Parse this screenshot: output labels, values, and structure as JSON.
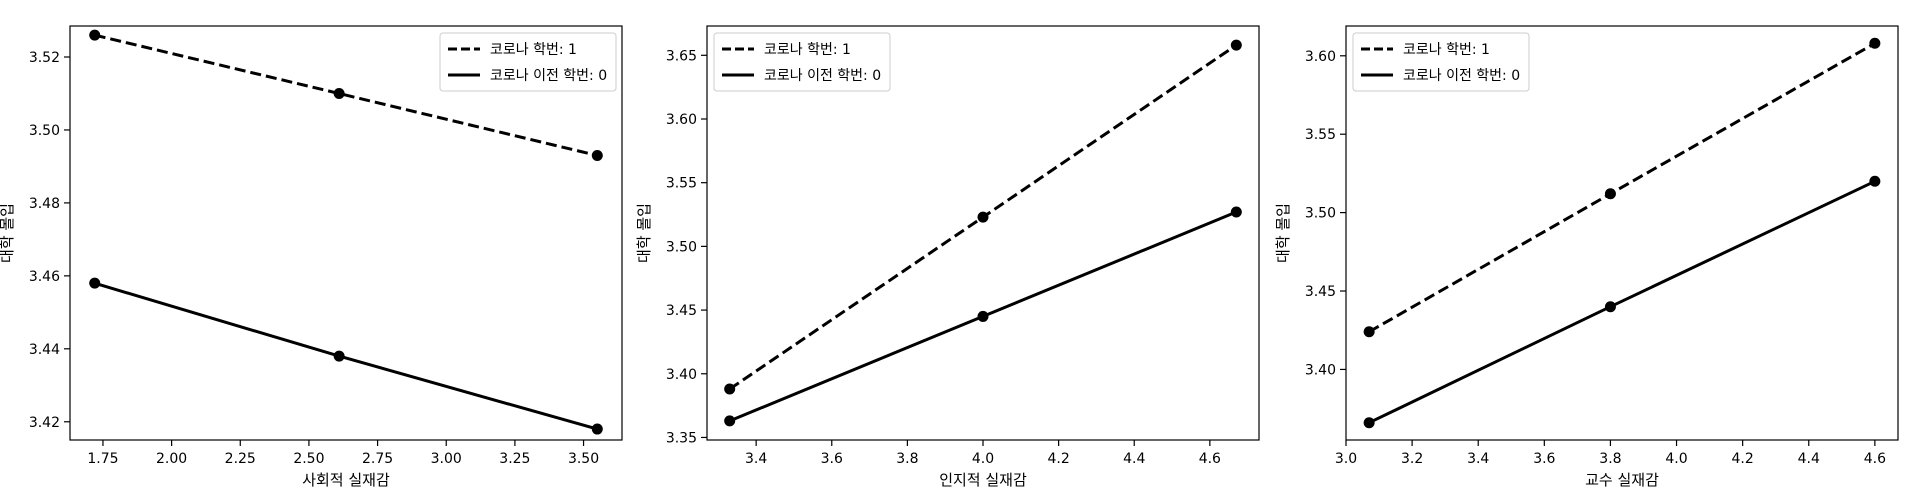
{
  "chart_data": [
    {
      "type": "line",
      "xlabel": "사회적 실재감",
      "ylabel": "대학 몰입",
      "xlim": [
        1.63,
        3.64
      ],
      "ylim": [
        3.415,
        3.5285
      ],
      "xticks": [
        1.75,
        2.0,
        2.25,
        2.5,
        2.75,
        3.0,
        3.25,
        3.5
      ],
      "xtick_labels": [
        "1.75",
        "2.00",
        "2.25",
        "2.50",
        "2.75",
        "3.00",
        "3.25",
        "3.50"
      ],
      "yticks": [
        3.42,
        3.44,
        3.46,
        3.48,
        3.5,
        3.52
      ],
      "ytick_labels": [
        "3.42",
        "3.44",
        "3.46",
        "3.48",
        "3.50",
        "3.52"
      ],
      "legend_position": "top-right",
      "grid": false,
      "series": [
        {
          "name": "코로나 학번: 1",
          "style": "dashed",
          "x": [
            1.72,
            2.61,
            3.55
          ],
          "y": [
            3.526,
            3.51,
            3.493
          ]
        },
        {
          "name": "코로나 이전 학번: 0",
          "style": "solid",
          "x": [
            1.72,
            2.61,
            3.55
          ],
          "y": [
            3.458,
            3.438,
            3.418
          ]
        }
      ]
    },
    {
      "type": "line",
      "xlabel": "인지적 실재감",
      "ylabel": "대학 몰입",
      "xlim": [
        3.27,
        4.73
      ],
      "ylim": [
        3.348,
        3.673
      ],
      "xticks": [
        3.4,
        3.6,
        3.8,
        4.0,
        4.2,
        4.4,
        4.6
      ],
      "xtick_labels": [
        "3.4",
        "3.6",
        "3.8",
        "4.0",
        "4.2",
        "4.4",
        "4.6"
      ],
      "yticks": [
        3.35,
        3.4,
        3.45,
        3.5,
        3.55,
        3.6,
        3.65
      ],
      "ytick_labels": [
        "3.35",
        "3.40",
        "3.45",
        "3.50",
        "3.55",
        "3.60",
        "3.65"
      ],
      "legend_position": "top-left",
      "grid": false,
      "series": [
        {
          "name": "코로나 학번: 1",
          "style": "dashed",
          "x": [
            3.33,
            4.0,
            4.67
          ],
          "y": [
            3.388,
            3.523,
            3.658
          ]
        },
        {
          "name": "코로나 이전 학번: 0",
          "style": "solid",
          "x": [
            3.33,
            4.0,
            4.67
          ],
          "y": [
            3.363,
            3.445,
            3.527
          ]
        }
      ]
    },
    {
      "type": "line",
      "xlabel": "교수 실재감",
      "ylabel": "대학 몰입",
      "xlim": [
        3.0,
        4.67
      ],
      "ylim": [
        3.355,
        3.619
      ],
      "xticks": [
        3.0,
        3.2,
        3.4,
        3.6,
        3.8,
        4.0,
        4.2,
        4.4,
        4.6
      ],
      "xtick_labels": [
        "3.0",
        "3.2",
        "3.4",
        "3.6",
        "3.8",
        "4.0",
        "4.2",
        "4.4",
        "4.6"
      ],
      "yticks": [
        3.4,
        3.45,
        3.5,
        3.55,
        3.6
      ],
      "ytick_labels": [
        "3.40",
        "3.45",
        "3.50",
        "3.55",
        "3.60"
      ],
      "legend_position": "top-left",
      "grid": false,
      "series": [
        {
          "name": "코로나 학번: 1",
          "style": "dashed",
          "x": [
            3.07,
            3.8,
            4.6
          ],
          "y": [
            3.424,
            3.512,
            3.608
          ]
        },
        {
          "name": "코로나 이전 학번: 0",
          "style": "solid",
          "x": [
            3.07,
            3.8,
            4.6
          ],
          "y": [
            3.366,
            3.44,
            3.52
          ]
        }
      ]
    }
  ]
}
